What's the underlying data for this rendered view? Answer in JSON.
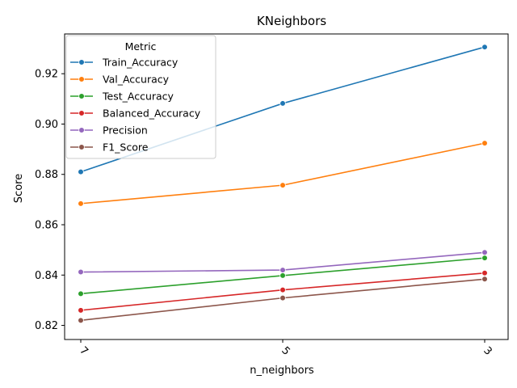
{
  "chart_data": {
    "type": "line",
    "title": "KNeighbors",
    "xlabel": "n_neighbors",
    "ylabel": "Score",
    "categories": [
      "7",
      "5",
      "3"
    ],
    "ylim": [
      0.8144,
      0.9358
    ],
    "yticks": [
      "0.82",
      "0.84",
      "0.86",
      "0.88",
      "0.90",
      "0.92"
    ],
    "ytick_values": [
      0.82,
      0.84,
      0.86,
      0.88,
      0.9,
      0.92
    ],
    "legend": {
      "title": "Metric",
      "location": "upper-left"
    },
    "series": [
      {
        "name": "Train_Accuracy",
        "color": "#1f77b4",
        "values": [
          0.881,
          0.9082,
          0.9306
        ]
      },
      {
        "name": "Val_Accuracy",
        "color": "#ff7f0e",
        "values": [
          0.8684,
          0.8757,
          0.8924
        ]
      },
      {
        "name": "Test_Accuracy",
        "color": "#2ca02c",
        "values": [
          0.8326,
          0.8398,
          0.8468
        ]
      },
      {
        "name": "Balanced_Accuracy",
        "color": "#d62728",
        "values": [
          0.826,
          0.8341,
          0.8408
        ]
      },
      {
        "name": "Precision",
        "color": "#9467bd",
        "values": [
          0.8412,
          0.842,
          0.849
        ]
      },
      {
        "name": "F1_Score",
        "color": "#8c564b",
        "values": [
          0.822,
          0.8309,
          0.8384
        ]
      }
    ]
  }
}
